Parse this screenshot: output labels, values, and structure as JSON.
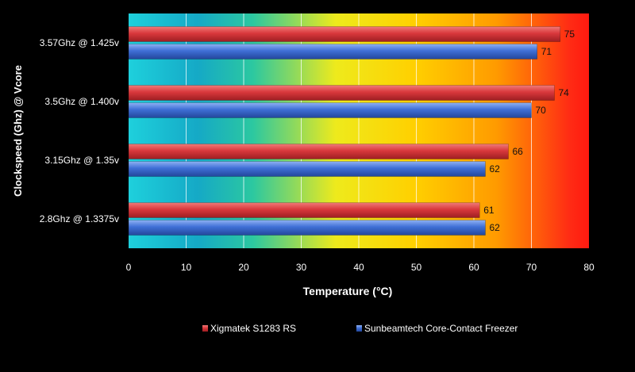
{
  "chart_data": {
    "type": "bar",
    "orientation": "horizontal",
    "categories": [
      "3.57Ghz @ 1.425v",
      "3.5Ghz @ 1.400v",
      "3.15Ghz @ 1.35v",
      "2.8Ghz @ 1.3375v"
    ],
    "series": [
      {
        "name": "Xigmatek S1283 RS",
        "values": [
          75,
          74,
          66,
          61
        ],
        "color": "#d9383c"
      },
      {
        "name": "Sunbeamtech Core-Contact Freezer",
        "values": [
          71,
          70,
          62,
          62
        ],
        "color": "#3f6fd6"
      }
    ],
    "xlabel": "Temperature (°C)",
    "ylabel": "Clockspeed (Ghz) @ Vcore",
    "xlim": [
      0,
      80
    ],
    "xticks": [
      0,
      10,
      20,
      30,
      40,
      50,
      60,
      70,
      80
    ],
    "grid": true,
    "legend_position": "bottom",
    "background_gradient": [
      "#1ec6d8",
      "#19a8c6",
      "#2fc49a",
      "#f2ee1a",
      "#ffcc00",
      "#ff9800",
      "#ff2a14"
    ]
  }
}
